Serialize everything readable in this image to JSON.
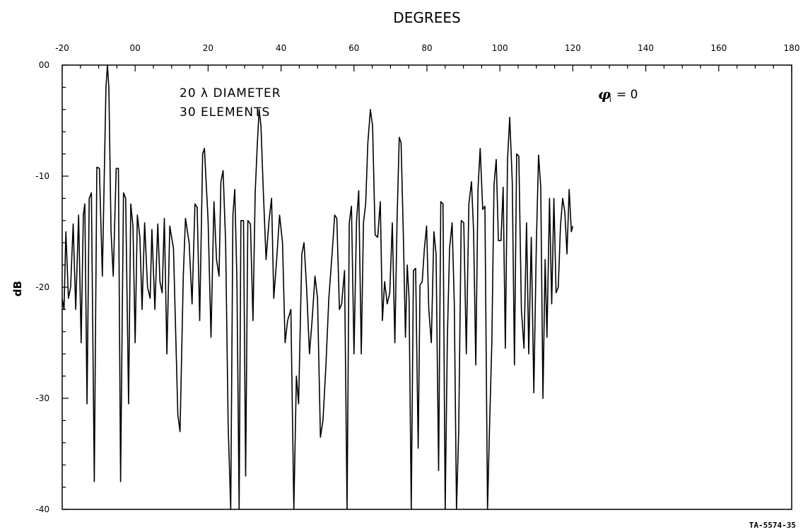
{
  "chart_data": {
    "type": "line",
    "title": "DEGREES",
    "ylabel": "dB",
    "xlim": [
      -20,
      180
    ],
    "ylim": [
      -40,
      0
    ],
    "x_tick_labels": [
      "-20",
      "00",
      "20",
      "40",
      "60",
      "80",
      "100",
      "120",
      "140",
      "160",
      "180"
    ],
    "x_tick_values": [
      -20,
      0,
      20,
      40,
      60,
      80,
      100,
      120,
      140,
      160,
      180
    ],
    "y_tick_labels": [
      "00",
      "-10",
      "-20",
      "-30",
      "-40"
    ],
    "y_tick_values": [
      0,
      -10,
      -20,
      -30,
      -40
    ],
    "annotations": {
      "line1": "20 λ DIAMETER",
      "line2": "30 ELEMENTS",
      "phi_symbol": "φ",
      "phi_subscript": "i",
      "phi_value": "= 0"
    },
    "figure_id": "TA-5574-35",
    "grid": false,
    "series": [
      {
        "points": [
          [
            -20,
            -21
          ],
          [
            -19.5,
            -22
          ],
          [
            -19,
            -15
          ],
          [
            -18.3,
            -21
          ],
          [
            -17.7,
            -20
          ],
          [
            -17,
            -14.3
          ],
          [
            -16.3,
            -22
          ],
          [
            -15.5,
            -13.5
          ],
          [
            -14.8,
            -25
          ],
          [
            -14.2,
            -13.5
          ],
          [
            -13.8,
            -12.5
          ],
          [
            -13.2,
            -30.5
          ],
          [
            -12.6,
            -12
          ],
          [
            -12,
            -11.5
          ],
          [
            -11.2,
            -37.5
          ],
          [
            -10.5,
            -9.2
          ],
          [
            -9.8,
            -9.3
          ],
          [
            -9,
            -19
          ],
          [
            -8,
            -2
          ],
          [
            -7.6,
            0
          ],
          [
            -7.2,
            -2
          ],
          [
            -6.6,
            -15
          ],
          [
            -6,
            -19
          ],
          [
            -5.2,
            -9.3
          ],
          [
            -4.6,
            -9.3
          ],
          [
            -4,
            -37.5
          ],
          [
            -3.2,
            -11.5
          ],
          [
            -2.6,
            -12
          ],
          [
            -1.8,
            -30.5
          ],
          [
            -1.2,
            -12.5
          ],
          [
            -0.6,
            -14.5
          ],
          [
            0,
            -25
          ],
          [
            0.6,
            -13.5
          ],
          [
            1.3,
            -15.5
          ],
          [
            1.9,
            -22
          ],
          [
            2.6,
            -14.2
          ],
          [
            3.4,
            -20
          ],
          [
            4.1,
            -21
          ],
          [
            4.6,
            -14.8
          ],
          [
            5.4,
            -22
          ],
          [
            6.2,
            -14.3
          ],
          [
            6.8,
            -19.5
          ],
          [
            7.4,
            -20.5
          ],
          [
            8,
            -13.8
          ],
          [
            8.7,
            -26
          ],
          [
            9.5,
            -14.5
          ],
          [
            10.5,
            -16.5
          ],
          [
            11.7,
            -31.5
          ],
          [
            12.3,
            -33
          ],
          [
            13.2,
            -19
          ],
          [
            13.8,
            -13.8
          ],
          [
            14.8,
            -16
          ],
          [
            15.6,
            -21.5
          ],
          [
            16.4,
            -12.5
          ],
          [
            17,
            -12.8
          ],
          [
            17.7,
            -23
          ],
          [
            18.5,
            -8
          ],
          [
            19,
            -7.5
          ],
          [
            20,
            -14
          ],
          [
            20.8,
            -24.5
          ],
          [
            21.6,
            -12.3
          ],
          [
            22.3,
            -17.5
          ],
          [
            23,
            -19
          ],
          [
            23.5,
            -10.5
          ],
          [
            24.1,
            -9.5
          ],
          [
            24.8,
            -16
          ],
          [
            25.5,
            -32.5
          ],
          [
            26.2,
            -40
          ],
          [
            26.8,
            -13.5
          ],
          [
            27.3,
            -11.2
          ],
          [
            27.9,
            -19.5
          ],
          [
            28.5,
            -40
          ],
          [
            29,
            -14
          ],
          [
            29.7,
            -14
          ],
          [
            30.3,
            -37
          ],
          [
            30.9,
            -14
          ],
          [
            31.6,
            -14.3
          ],
          [
            32.3,
            -23
          ],
          [
            32.9,
            -11.5
          ],
          [
            33.5,
            -7
          ],
          [
            34,
            -4
          ],
          [
            34.5,
            -5.5
          ],
          [
            35.1,
            -11
          ],
          [
            35.9,
            -17.5
          ],
          [
            36.7,
            -14
          ],
          [
            37.4,
            -12
          ],
          [
            38,
            -21
          ],
          [
            38.8,
            -17.5
          ],
          [
            39.6,
            -13.5
          ],
          [
            40.4,
            -16
          ],
          [
            41.1,
            -25
          ],
          [
            41.8,
            -23
          ],
          [
            42.7,
            -22
          ],
          [
            43.5,
            -40
          ],
          [
            44.2,
            -28
          ],
          [
            44.8,
            -30.5
          ],
          [
            45.7,
            -17
          ],
          [
            46.3,
            -16
          ],
          [
            47,
            -20
          ],
          [
            47.8,
            -26
          ],
          [
            48.5,
            -23
          ],
          [
            49.3,
            -19
          ],
          [
            50,
            -21
          ],
          [
            50.8,
            -33.5
          ],
          [
            51.5,
            -32
          ],
          [
            52.3,
            -27
          ],
          [
            53.1,
            -21
          ],
          [
            54,
            -17
          ],
          [
            54.7,
            -13.5
          ],
          [
            55.3,
            -13.8
          ],
          [
            56,
            -22
          ],
          [
            56.6,
            -21.5
          ],
          [
            57.4,
            -18.5
          ],
          [
            58.1,
            -40
          ],
          [
            58.7,
            -14.2
          ],
          [
            59.3,
            -12.7
          ],
          [
            60,
            -26
          ],
          [
            60.7,
            -14
          ],
          [
            61.3,
            -11.3
          ],
          [
            62,
            -26
          ],
          [
            62.6,
            -14.2
          ],
          [
            63.2,
            -12.5
          ],
          [
            63.8,
            -7
          ],
          [
            64.5,
            -4
          ],
          [
            65.1,
            -5.5
          ],
          [
            65.8,
            -15.3
          ],
          [
            66.5,
            -15.5
          ],
          [
            67.2,
            -12.3
          ],
          [
            67.8,
            -23
          ],
          [
            68.4,
            -19.5
          ],
          [
            69.1,
            -21.5
          ],
          [
            69.8,
            -20.5
          ],
          [
            70.5,
            -14.2
          ],
          [
            71.2,
            -25
          ],
          [
            71.8,
            -14
          ],
          [
            72.4,
            -6.5
          ],
          [
            72.9,
            -7
          ],
          [
            73.5,
            -15
          ],
          [
            74.1,
            -24.5
          ],
          [
            74.6,
            -18
          ],
          [
            75.1,
            -21
          ],
          [
            75.7,
            -40
          ],
          [
            76.3,
            -18.5
          ],
          [
            76.9,
            -18.3
          ],
          [
            77.6,
            -34.5
          ],
          [
            78.1,
            -19.8
          ],
          [
            78.7,
            -19.5
          ],
          [
            79.3,
            -16.5
          ],
          [
            79.9,
            -14.5
          ],
          [
            80.5,
            -22
          ],
          [
            81.2,
            -25
          ],
          [
            81.9,
            -15
          ],
          [
            82.5,
            -17
          ],
          [
            83.2,
            -36.5
          ],
          [
            83.8,
            -12.3
          ],
          [
            84.4,
            -12.5
          ],
          [
            85,
            -40
          ],
          [
            85.6,
            -24.5
          ],
          [
            86.2,
            -16.5
          ],
          [
            86.9,
            -14.2
          ],
          [
            87.5,
            -21.5
          ],
          [
            88.1,
            -40
          ],
          [
            88.7,
            -33
          ],
          [
            89.4,
            -14
          ],
          [
            90.1,
            -14.2
          ],
          [
            90.8,
            -26
          ],
          [
            91.5,
            -12.5
          ],
          [
            92.2,
            -10.5
          ],
          [
            92.8,
            -15
          ],
          [
            93.4,
            -27
          ],
          [
            94,
            -11.2
          ],
          [
            94.6,
            -7.5
          ],
          [
            95.3,
            -13
          ],
          [
            95.9,
            -12.7
          ],
          [
            96.6,
            -40
          ],
          [
            97.2,
            -32
          ],
          [
            97.8,
            -25
          ],
          [
            98.4,
            -10.8
          ],
          [
            99,
            -8.5
          ],
          [
            99.6,
            -15.8
          ],
          [
            100.3,
            -15.8
          ],
          [
            100.9,
            -11
          ],
          [
            101.5,
            -25.5
          ],
          [
            102.1,
            -8.5
          ],
          [
            102.7,
            -4.7
          ],
          [
            103.4,
            -10.5
          ],
          [
            104,
            -27
          ],
          [
            104.6,
            -8
          ],
          [
            105.2,
            -8.2
          ],
          [
            105.9,
            -22
          ],
          [
            106.6,
            -25.5
          ],
          [
            107.3,
            -14.2
          ],
          [
            107.9,
            -26
          ],
          [
            108.6,
            -15.5
          ],
          [
            109.3,
            -29.5
          ],
          [
            110,
            -16
          ],
          [
            110.6,
            -8.1
          ],
          [
            111.2,
            -11
          ],
          [
            111.8,
            -30
          ],
          [
            112.4,
            -17.5
          ],
          [
            112.9,
            -24.5
          ],
          [
            113.6,
            -12
          ],
          [
            114.2,
            -21.5
          ],
          [
            114.8,
            -12
          ],
          [
            115.4,
            -20.5
          ],
          [
            116,
            -20
          ],
          [
            116.6,
            -14.5
          ],
          [
            117.2,
            -12
          ],
          [
            117.8,
            -13.2
          ],
          [
            118.4,
            -17
          ],
          [
            119,
            -11.2
          ],
          [
            119.6,
            -15
          ],
          [
            120,
            -14.5
          ]
        ]
      }
    ]
  }
}
